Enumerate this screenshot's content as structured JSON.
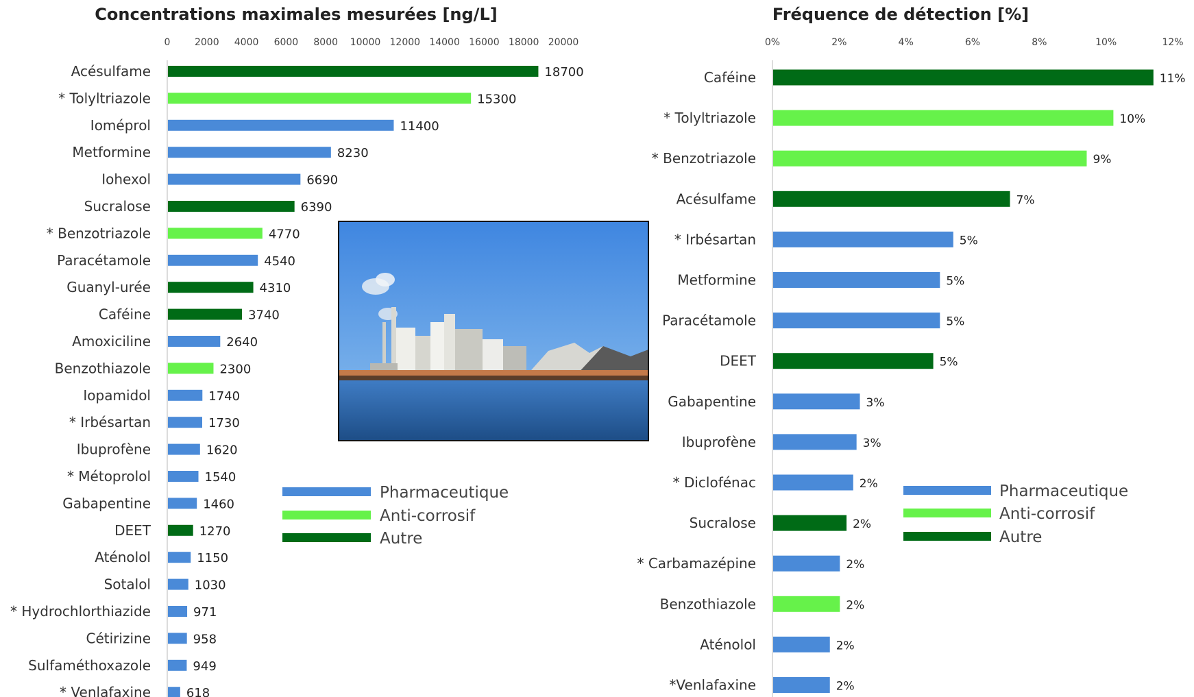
{
  "colors": {
    "Pharmaceutique": "#4a8ad8",
    "Anti-corrosif": "#66f24a",
    "Autre": "#006b16"
  },
  "photo": {
    "icon": "industrial-harbour-photo"
  },
  "legend": [
    "Pharmaceutique",
    "Anti-corrosif",
    "Autre"
  ],
  "chart_data": [
    {
      "type": "bar",
      "orientation": "horizontal",
      "title": "Concentrations maximales mesurées [ng/L]",
      "xlim": [
        0,
        20000
      ],
      "ticks": [
        "0",
        "2000",
        "4000",
        "6000",
        "8000",
        "10000",
        "12000",
        "14000",
        "16000",
        "18000",
        "20000"
      ],
      "legend_position": "bottom-center",
      "categories": [
        "Acésulfame",
        "* Tolyltriazole",
        "Ioméprol",
        "Metformine",
        "Iohexol",
        "Sucralose",
        "* Benzotriazole",
        "Paracétamole",
        "Guanyl-urée",
        "Caféine",
        "Amoxiciline",
        "Benzothiazole",
        "Iopamidol",
        "* Irbésartan",
        "Ibuprofène",
        "* Métoprolol",
        "Gabapentine",
        "DEET",
        "Aténolol",
        "Sotalol",
        "* Hydrochlorthiazide",
        "Cétirizine",
        "Sulfaméthoxazole",
        "* Venlafaxine"
      ],
      "values": [
        18700,
        15300,
        11400,
        8230,
        6690,
        6390,
        4770,
        4540,
        4310,
        3740,
        2640,
        2300,
        1740,
        1730,
        1620,
        1540,
        1460,
        1270,
        1150,
        1030,
        971,
        958,
        949,
        618
      ],
      "value_labels": [
        "18700",
        "15300",
        "11400",
        "8230",
        "6690",
        "6390",
        "4770",
        "4540",
        "4310",
        "3740",
        "2640",
        "2300",
        "1740",
        "1730",
        "1620",
        "1540",
        "1460",
        "1270",
        "1150",
        "1030",
        "971",
        "958",
        "949",
        "618"
      ],
      "groups": [
        "Autre",
        "Anti-corrosif",
        "Pharmaceutique",
        "Pharmaceutique",
        "Pharmaceutique",
        "Autre",
        "Anti-corrosif",
        "Pharmaceutique",
        "Autre",
        "Autre",
        "Pharmaceutique",
        "Anti-corrosif",
        "Pharmaceutique",
        "Pharmaceutique",
        "Pharmaceutique",
        "Pharmaceutique",
        "Pharmaceutique",
        "Autre",
        "Pharmaceutique",
        "Pharmaceutique",
        "Pharmaceutique",
        "Pharmaceutique",
        "Pharmaceutique",
        "Pharmaceutique"
      ]
    },
    {
      "type": "bar",
      "orientation": "horizontal",
      "title": "Fréquence de détection [%]",
      "xlim": [
        0,
        12
      ],
      "ticks": [
        "0%",
        "2%",
        "4%",
        "6%",
        "8%",
        "10%",
        "12%"
      ],
      "legend_position": "right",
      "categories": [
        "Caféine",
        "* Tolyltriazole",
        "* Benzotriazole",
        "Acésulfame",
        "* Irbésartan",
        "Metformine",
        "Paracétamole",
        "DEET",
        "Gabapentine",
        "Ibuprofène",
        "* Diclofénac",
        "Sucralose",
        "* Carbamazépine",
        "Benzothiazole",
        "Aténolol",
        "*Venlafaxine"
      ],
      "values": [
        11.4,
        10.2,
        9.4,
        7.1,
        5.4,
        5.0,
        5.0,
        4.8,
        2.6,
        2.5,
        2.4,
        2.2,
        2.0,
        2.0,
        1.7,
        1.7
      ],
      "value_labels": [
        "11%",
        "10%",
        "9%",
        "7%",
        "5%",
        "5%",
        "5%",
        "5%",
        "3%",
        "3%",
        "2%",
        "2%",
        "2%",
        "2%",
        "2%",
        "2%"
      ],
      "groups": [
        "Autre",
        "Anti-corrosif",
        "Anti-corrosif",
        "Autre",
        "Pharmaceutique",
        "Pharmaceutique",
        "Pharmaceutique",
        "Autre",
        "Pharmaceutique",
        "Pharmaceutique",
        "Pharmaceutique",
        "Autre",
        "Pharmaceutique",
        "Anti-corrosif",
        "Pharmaceutique",
        "Pharmaceutique"
      ]
    }
  ]
}
